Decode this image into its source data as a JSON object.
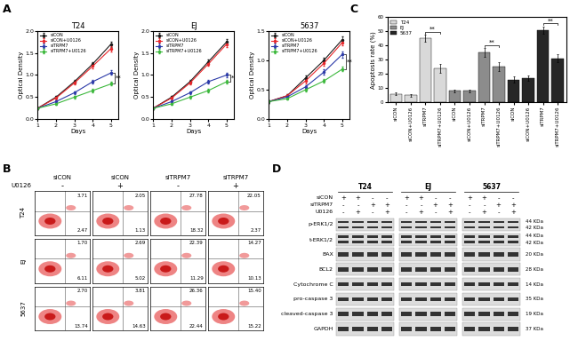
{
  "panel_labels": [
    "A",
    "B",
    "C",
    "D"
  ],
  "chart_data": [
    {
      "type": "line",
      "title": "T24",
      "x": [
        1,
        2,
        3,
        4,
        5
      ],
      "xlim": [
        1,
        5.4
      ],
      "xticks": [
        1,
        2,
        3,
        4,
        5
      ],
      "ylim": [
        0,
        2
      ],
      "yticks": [
        {
          "value": 0,
          "label": "0.0"
        },
        0.5,
        {
          "value": 1,
          "label": "1.0"
        },
        1.5,
        {
          "value": 2,
          "label": "2.0"
        }
      ],
      "x_label": "Days",
      "y_label": "Optical Density",
      "legend": "upper left",
      "series": [
        {
          "name": "siCON",
          "color": "#1a1a1a",
          "marker": "o",
          "values": [
            0.25,
            0.5,
            0.85,
            1.25,
            1.7
          ],
          "errors": [
            0.02,
            0.03,
            0.04,
            0.05,
            0.06
          ]
        },
        {
          "name": "siCON+U0126",
          "color": "#e8262a",
          "marker": "o",
          "values": [
            0.25,
            0.48,
            0.82,
            1.2,
            1.6
          ],
          "errors": [
            0.02,
            0.03,
            0.04,
            0.05,
            0.06
          ]
        },
        {
          "name": "siTRPM7",
          "color": "#2b3aa8",
          "marker": "o",
          "values": [
            0.25,
            0.4,
            0.6,
            0.85,
            1.05
          ],
          "errors": [
            0.02,
            0.03,
            0.03,
            0.04,
            0.05
          ]
        },
        {
          "name": "siTRPM7+U0126",
          "color": "#3cb83c",
          "marker": "o",
          "values": [
            0.25,
            0.35,
            0.5,
            0.65,
            0.8
          ],
          "errors": [
            0.02,
            0.02,
            0.03,
            0.04,
            0.04
          ]
        }
      ],
      "annotations": [
        {
          "text": "**",
          "x": 5,
          "between": [
            "siTRPM7",
            "siTRPM7+U0126"
          ]
        }
      ]
    },
    {
      "type": "line",
      "title": "EJ",
      "x": [
        1,
        2,
        3,
        4,
        5
      ],
      "xlim": [
        1,
        5.4
      ],
      "xticks": [
        1,
        2,
        3,
        4,
        5
      ],
      "ylim": [
        0,
        2
      ],
      "yticks": [
        {
          "value": 0,
          "label": "0.0"
        },
        0.5,
        {
          "value": 1,
          "label": "1.0"
        },
        1.5,
        {
          "value": 2,
          "label": "2.0"
        }
      ],
      "x_label": "Days",
      "y_label": "Optical Density",
      "legend": "upper left",
      "series": [
        {
          "name": "siCON",
          "color": "#1a1a1a",
          "marker": "o",
          "values": [
            0.25,
            0.5,
            0.85,
            1.3,
            1.75
          ],
          "errors": [
            0.02,
            0.03,
            0.04,
            0.05,
            0.06
          ]
        },
        {
          "name": "siCON+U0126",
          "color": "#e8262a",
          "marker": "o",
          "values": [
            0.25,
            0.48,
            0.82,
            1.25,
            1.7
          ],
          "errors": [
            0.02,
            0.03,
            0.04,
            0.05,
            0.06
          ]
        },
        {
          "name": "siTRPM7",
          "color": "#2b3aa8",
          "marker": "o",
          "values": [
            0.25,
            0.4,
            0.6,
            0.85,
            1.0
          ],
          "errors": [
            0.02,
            0.03,
            0.03,
            0.04,
            0.05
          ]
        },
        {
          "name": "siTRPM7+U0126",
          "color": "#3cb83c",
          "marker": "o",
          "values": [
            0.25,
            0.35,
            0.5,
            0.65,
            0.85
          ],
          "errors": [
            0.02,
            0.02,
            0.03,
            0.04,
            0.04
          ]
        }
      ],
      "annotations": [
        {
          "text": "*",
          "x": 5,
          "between": [
            "siTRPM7",
            "siTRPM7+U0126"
          ]
        }
      ]
    },
    {
      "type": "line",
      "title": "5637",
      "x": [
        1,
        2,
        3,
        4,
        5
      ],
      "xlim": [
        1,
        5.4
      ],
      "xticks": [
        1,
        2,
        3,
        4,
        5
      ],
      "ylim": [
        0,
        1.5
      ],
      "yticks": [
        {
          "value": 0,
          "label": "0.0"
        },
        0.5,
        {
          "value": 1,
          "label": "1.0"
        },
        1.5
      ],
      "x_label": "Days",
      "y_label": "Optical Density",
      "legend": "upper left",
      "series": [
        {
          "name": "siCON",
          "color": "#1a1a1a",
          "marker": "o",
          "values": [
            0.3,
            0.4,
            0.7,
            1.0,
            1.35
          ],
          "errors": [
            0.02,
            0.03,
            0.04,
            0.05,
            0.05
          ]
        },
        {
          "name": "siCON+U0126",
          "color": "#e8262a",
          "marker": "o",
          "values": [
            0.3,
            0.4,
            0.65,
            0.95,
            1.3
          ],
          "errors": [
            0.02,
            0.03,
            0.04,
            0.05,
            0.05
          ]
        },
        {
          "name": "siTRPM7",
          "color": "#2b3aa8",
          "marker": "o",
          "values": [
            0.3,
            0.38,
            0.55,
            0.8,
            1.1
          ],
          "errors": [
            0.02,
            0.02,
            0.03,
            0.04,
            0.05
          ]
        },
        {
          "name": "siTRPM7+U0126",
          "color": "#3cb83c",
          "marker": "o",
          "values": [
            0.3,
            0.35,
            0.5,
            0.65,
            0.85
          ],
          "errors": [
            0.02,
            0.02,
            0.03,
            0.03,
            0.04
          ]
        }
      ],
      "annotations": [
        {
          "text": "**",
          "x": 5,
          "between": [
            "siTRPM7",
            "siTRPM7+U0126"
          ]
        }
      ]
    },
    {
      "type": "bar",
      "y_label": "Apoptosis rate (%)",
      "ylim": [
        0,
        60
      ],
      "yticks": [
        0,
        10,
        20,
        30,
        40,
        50,
        60
      ],
      "legend": "upper left",
      "categories": [
        "siCON",
        "siCON+U0126",
        "siTRPM7",
        "siTRPM7+U0126",
        "siCON",
        "siCON+U0126",
        "siTRPM7",
        "siTRPM7+U0126",
        "siCON",
        "siCON+U0126",
        "siTRPM7",
        "siTRPM7+U0126"
      ],
      "series": [
        {
          "name": "T24",
          "color": "#d9d9d9",
          "values": [
            6,
            5,
            45,
            24,
            null,
            null,
            null,
            null,
            null,
            null,
            null,
            null
          ],
          "errors": [
            1,
            1,
            2.5,
            3,
            null,
            null,
            null,
            null,
            null,
            null,
            null,
            null
          ]
        },
        {
          "name": "EJ",
          "color": "#8c8c8c",
          "values": [
            null,
            null,
            null,
            null,
            8,
            8,
            35,
            25,
            null,
            null,
            null,
            null
          ],
          "errors": [
            null,
            null,
            null,
            null,
            1,
            1,
            3,
            3,
            null,
            null,
            null,
            null
          ]
        },
        {
          "name": "5637",
          "color": "#262626",
          "values": [
            null,
            null,
            null,
            null,
            null,
            null,
            null,
            null,
            16,
            17,
            51,
            31
          ],
          "errors": [
            null,
            null,
            null,
            null,
            null,
            null,
            null,
            null,
            2,
            2,
            2.5,
            3
          ]
        }
      ],
      "annotations": [
        {
          "text": "**",
          "series": "T24",
          "between": [
            "siTRPM7",
            "siTRPM7+U0126"
          ]
        },
        {
          "text": "**",
          "series": "EJ",
          "between": [
            "siTRPM7",
            "siTRPM7+U0126"
          ]
        },
        {
          "text": "**",
          "series": "5637",
          "between": [
            "siTRPM7",
            "siTRPM7+U0126"
          ]
        }
      ]
    }
  ],
  "flow_cytometry": {
    "u0126_label": "U0126",
    "columns": [
      {
        "sirna": "siCON",
        "u0126": "-"
      },
      {
        "sirna": "siCON",
        "u0126": "+"
      },
      {
        "sirna": "siTRPM7",
        "u0126": "-"
      },
      {
        "sirna": "siTRPM7",
        "u0126": "+"
      }
    ],
    "rows": [
      {
        "name": "T24",
        "upper_right": [
          "3.71",
          "2.05",
          "27.78",
          "22.05"
        ],
        "lower_right": [
          "2.47",
          "1.13",
          "18.32",
          "2.37"
        ]
      },
      {
        "name": "EJ",
        "upper_right": [
          "1.70",
          "2.69",
          "22.39",
          "14.27"
        ],
        "lower_right": [
          "6.11",
          "5.02",
          "11.29",
          "10.13"
        ]
      },
      {
        "name": "5637",
        "upper_right": [
          "2.70",
          "3.81",
          "26.36",
          "15.40"
        ],
        "lower_right": [
          "13.74",
          "14.63",
          "22.44",
          "15.22"
        ]
      }
    ]
  },
  "western_blot": {
    "cell_lines": [
      "T24",
      "EJ",
      "5637"
    ],
    "conditions": [
      {
        "label": "siCON",
        "signs": [
          "+",
          "+",
          "-",
          "-"
        ]
      },
      {
        "label": "siTRPM7",
        "signs": [
          "-",
          "-",
          "+",
          "+"
        ]
      },
      {
        "label": "U0126",
        "signs": [
          "-",
          "+",
          "-",
          "+"
        ]
      }
    ],
    "proteins": [
      {
        "name": "p-ERK1/2",
        "sizes": [
          "44 KDa",
          "42 KDa"
        ]
      },
      {
        "name": "t-ERK1/2",
        "sizes": [
          "44 KDa",
          "42 KDa"
        ]
      },
      {
        "name": "BAX",
        "sizes": [
          "20 KDa"
        ]
      },
      {
        "name": "BCL2",
        "sizes": [
          "28 KDa"
        ]
      },
      {
        "name": "Cytochrome C",
        "sizes": [
          "14 KDa"
        ]
      },
      {
        "name": "pro-caspase 3",
        "sizes": [
          "35 KDa"
        ]
      },
      {
        "name": "cleaved-caspase 3",
        "sizes": [
          "19 KDa"
        ]
      },
      {
        "name": "GAPDH",
        "sizes": [
          "37 KDa"
        ]
      }
    ]
  }
}
